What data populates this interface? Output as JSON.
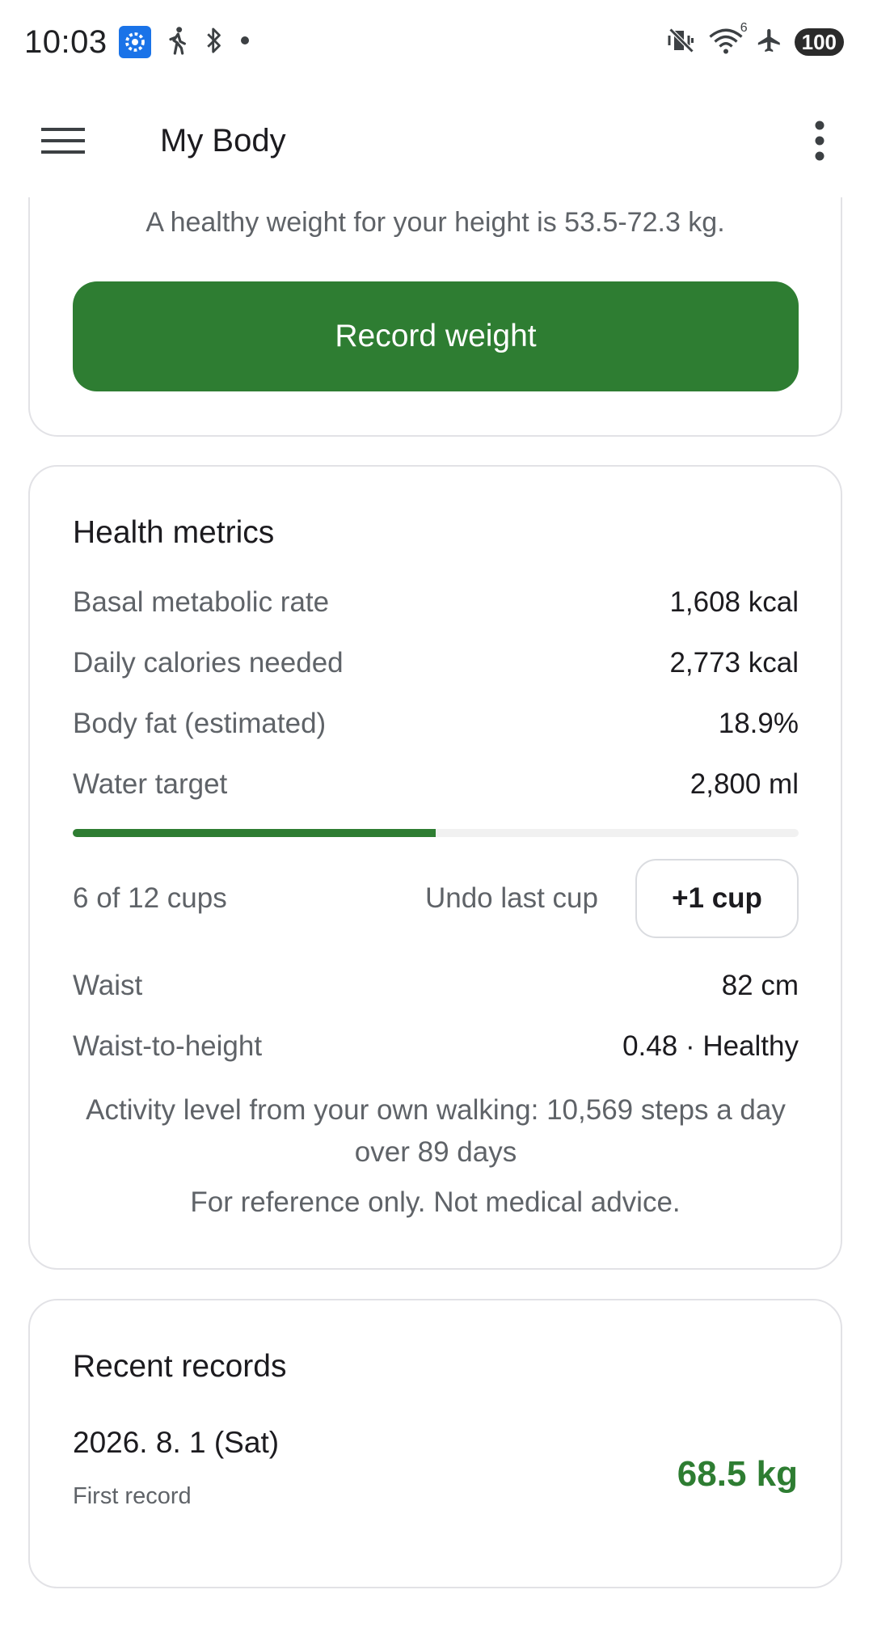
{
  "status_bar": {
    "time": "10:03",
    "left_icons": [
      "settings-app-icon",
      "walking-icon",
      "bluetooth-icon",
      "notification-dot-icon"
    ],
    "right_icons": [
      "vibrate-mute-icon",
      "wifi-icon",
      "airplane-mode-icon"
    ],
    "wifi_badge": "6",
    "battery": "100"
  },
  "app_bar": {
    "title": "My Body",
    "menu_icon": "hamburger-menu-icon",
    "more_icon": "more-vert-icon"
  },
  "weight_card": {
    "healthy_note": "A healthy weight for your height is 53.5-72.3 kg.",
    "record_button": "Record weight"
  },
  "health_metrics": {
    "title": "Health metrics",
    "rows": [
      {
        "label": "Basal metabolic rate",
        "value": "1,608 kcal"
      },
      {
        "label": "Daily calories needed",
        "value": "2,773 kcal"
      },
      {
        "label": "Body fat (estimated)",
        "value": "18.9%"
      },
      {
        "label": "Water target",
        "value": "2,800 ml"
      }
    ],
    "water_progress_fraction": 0.5,
    "cups_text": "6 of 12 cups",
    "undo_label": "Undo last cup",
    "add_cup_label": "+1 cup",
    "waist": {
      "label": "Waist",
      "value": "82 cm"
    },
    "waist_to_height": {
      "label": "Waist-to-height",
      "value": "0.48 · Healthy"
    },
    "activity_note": "Activity level from your own walking: 10,569 steps a day over 89 days",
    "reference_note": "For reference only. Not medical advice."
  },
  "recent_records": {
    "title": "Recent records",
    "items": [
      {
        "date": "2026. 8. 1 (Sat)",
        "note": "First record",
        "weight": "68.5 kg"
      }
    ]
  },
  "colors": {
    "accent_green": "#2e7d32",
    "settings_badge_blue": "#1a73e8"
  }
}
